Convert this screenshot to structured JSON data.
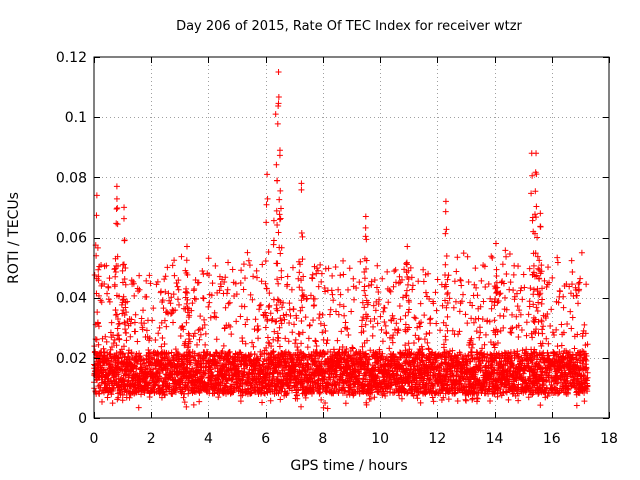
{
  "chart_data": {
    "type": "scatter",
    "title": "Day 206 of 2015, Rate Of TEC Index for receiver wtzr",
    "xlabel": "GPS time / hours",
    "ylabel": "ROTI / TECUs",
    "xlim": [
      0,
      18
    ],
    "ylim": [
      0,
      0.12
    ],
    "x_ticks": [
      0,
      2,
      4,
      6,
      8,
      10,
      12,
      14,
      16,
      18
    ],
    "y_ticks": [
      0,
      0.02,
      0.04,
      0.06,
      0.08,
      0.1,
      0.12
    ],
    "x_tick_labels": [
      "0",
      "2",
      "4",
      "6",
      "8",
      "10",
      "12",
      "14",
      "16",
      "18"
    ],
    "y_tick_labels": [
      "0",
      "0.02",
      "0.04",
      "0.06",
      "0.08",
      "0.1",
      "0.12"
    ],
    "grid": true,
    "marker": "+",
    "color": "#ff0000",
    "data_extent_hours": [
      0,
      17.25
    ],
    "baseline_band": [
      0.008,
      0.022
    ],
    "peaks": [
      {
        "x": 0.1,
        "y": 0.074
      },
      {
        "x": 0.8,
        "y": 0.077
      },
      {
        "x": 1.05,
        "y": 0.07
      },
      {
        "x": 3.25,
        "y": 0.057
      },
      {
        "x": 6.05,
        "y": 0.081
      },
      {
        "x": 6.35,
        "y": 0.101
      },
      {
        "x": 6.45,
        "y": 0.115
      },
      {
        "x": 6.5,
        "y": 0.089
      },
      {
        "x": 7.25,
        "y": 0.078
      },
      {
        "x": 9.5,
        "y": 0.067
      },
      {
        "x": 10.95,
        "y": 0.057
      },
      {
        "x": 12.3,
        "y": 0.072
      },
      {
        "x": 14.05,
        "y": 0.058
      },
      {
        "x": 15.3,
        "y": 0.088
      },
      {
        "x": 15.45,
        "y": 0.088
      },
      {
        "x": 15.6,
        "y": 0.068
      }
    ]
  }
}
